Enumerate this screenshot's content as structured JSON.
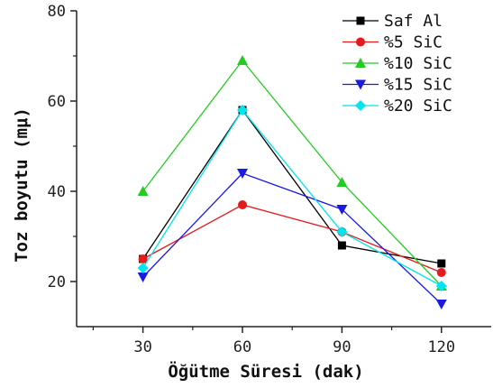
{
  "chart_data": {
    "type": "line",
    "title": "",
    "xlabel": "Öğütme Süresi (dak)",
    "ylabel": "Toz boyutu (mμ)",
    "x": [
      30,
      60,
      90,
      120
    ],
    "xlim": [
      10,
      135
    ],
    "ylim": [
      10,
      80
    ],
    "xticks": [
      "30",
      "60",
      "90",
      "120"
    ],
    "yticks": [
      "20",
      "40",
      "60",
      "80"
    ],
    "legend_position": "top-right",
    "grid": false,
    "series": [
      {
        "name": "Saf Al",
        "color": "#000000",
        "marker": "square",
        "values": [
          25,
          58,
          28,
          24
        ]
      },
      {
        "name": "%5 SiC",
        "color": "#e41a1c",
        "marker": "circle",
        "values": [
          25,
          37,
          31,
          22
        ]
      },
      {
        "name": "%10 SiC",
        "color": "#22cc22",
        "marker": "triangle-up",
        "values": [
          40,
          69,
          42,
          19
        ]
      },
      {
        "name": "%15 SiC",
        "color": "#1a1ae0",
        "marker": "triangle-down",
        "values": [
          21,
          44,
          36,
          15
        ]
      },
      {
        "name": "%20 SiC",
        "color": "#00e5ee",
        "marker": "diamond",
        "values": [
          23,
          58,
          31,
          19
        ]
      }
    ]
  }
}
